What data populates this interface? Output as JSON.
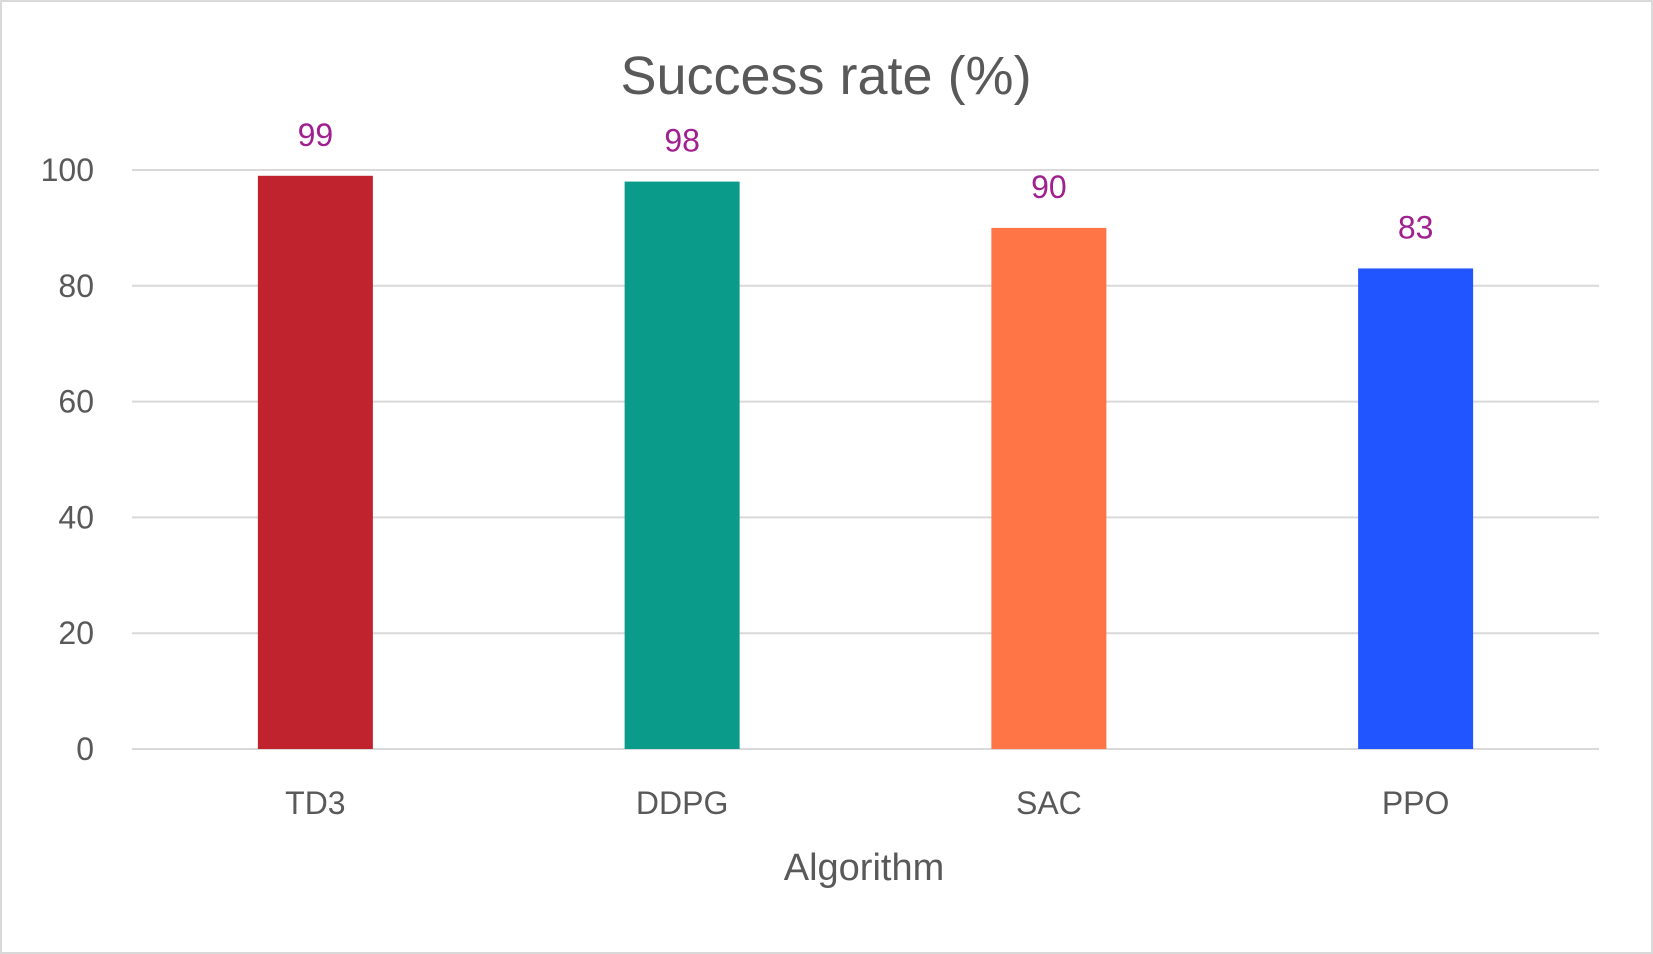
{
  "chart_data": {
    "type": "bar",
    "title": "Success rate (%)",
    "xlabel": "Algorithm",
    "ylabel": "",
    "categories": [
      "TD3",
      "DDPG",
      "SAC",
      "PPO"
    ],
    "values": [
      99,
      98,
      90,
      83
    ],
    "data_labels": [
      "99",
      "98",
      "90",
      "83"
    ],
    "bar_colors": [
      "#c0222e",
      "#0a9b8a",
      "#ff7546",
      "#2155ff"
    ],
    "data_label_color": "#a02090",
    "ylim": [
      0,
      100
    ],
    "yticks": [
      0,
      20,
      40,
      60,
      80,
      100
    ],
    "ytick_labels": [
      "0",
      "20",
      "40",
      "60",
      "80",
      "100"
    ],
    "grid": true,
    "legend": "none"
  }
}
